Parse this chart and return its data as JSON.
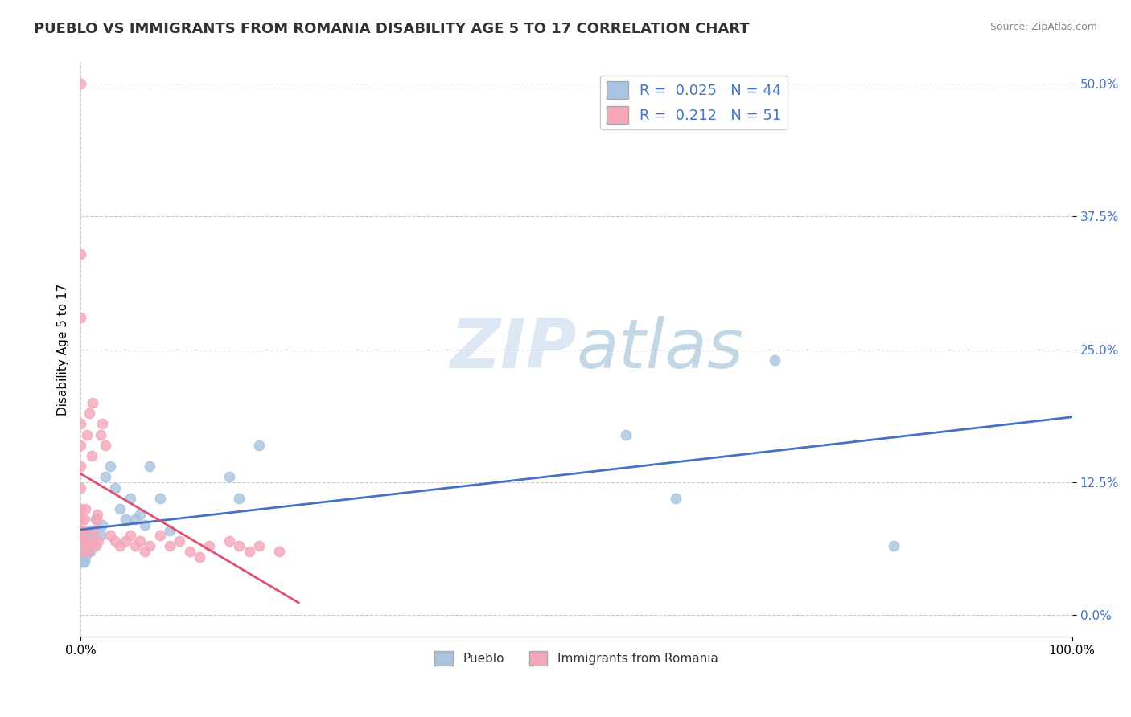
{
  "title": "PUEBLO VS IMMIGRANTS FROM ROMANIA DISABILITY AGE 5 TO 17 CORRELATION CHART",
  "source": "Source: ZipAtlas.com",
  "ylabel": "Disability Age 5 to 17",
  "xlim": [
    0.0,
    1.0
  ],
  "ylim": [
    -0.02,
    0.52
  ],
  "ytick_labels": [
    "0.0%",
    "12.5%",
    "25.0%",
    "37.5%",
    "50.0%"
  ],
  "ytick_values": [
    0.0,
    0.125,
    0.25,
    0.375,
    0.5
  ],
  "pueblo_R": 0.025,
  "pueblo_N": 44,
  "romania_R": 0.212,
  "romania_N": 51,
  "pueblo_color": "#a8c4e0",
  "pueblo_line_color": "#4472c4",
  "romania_color": "#f4a7b9",
  "romania_line_color": "#e05070",
  "legend_label_1": "Pueblo",
  "legend_label_2": "Immigrants from Romania",
  "watermark_zip": "ZIP",
  "watermark_atlas": "atlas",
  "pueblo_x": [
    0.0,
    0.0,
    0.0,
    0.0,
    0.0,
    0.002,
    0.002,
    0.003,
    0.003,
    0.004,
    0.005,
    0.005,
    0.006,
    0.006,
    0.007,
    0.008,
    0.009,
    0.01,
    0.01,
    0.011,
    0.012,
    0.013,
    0.015,
    0.02,
    0.022,
    0.025,
    0.03,
    0.035,
    0.04,
    0.045,
    0.05,
    0.055,
    0.06,
    0.065,
    0.07,
    0.08,
    0.09,
    0.15,
    0.16,
    0.18,
    0.55,
    0.6,
    0.7,
    0.82
  ],
  "pueblo_y": [
    0.05,
    0.06,
    0.07,
    0.075,
    0.08,
    0.05,
    0.06,
    0.06,
    0.07,
    0.05,
    0.055,
    0.065,
    0.06,
    0.07,
    0.065,
    0.07,
    0.075,
    0.06,
    0.08,
    0.07,
    0.065,
    0.08,
    0.09,
    0.075,
    0.085,
    0.13,
    0.14,
    0.12,
    0.1,
    0.09,
    0.11,
    0.09,
    0.095,
    0.085,
    0.14,
    0.11,
    0.08,
    0.13,
    0.11,
    0.16,
    0.17,
    0.11,
    0.24,
    0.065
  ],
  "romania_x": [
    0.0,
    0.0,
    0.0,
    0.0,
    0.0,
    0.0,
    0.0,
    0.0,
    0.0,
    0.0,
    0.0,
    0.0,
    0.002,
    0.003,
    0.004,
    0.005,
    0.006,
    0.007,
    0.008,
    0.009,
    0.01,
    0.011,
    0.012,
    0.013,
    0.015,
    0.016,
    0.017,
    0.018,
    0.02,
    0.022,
    0.025,
    0.03,
    0.035,
    0.04,
    0.045,
    0.05,
    0.055,
    0.06,
    0.065,
    0.07,
    0.08,
    0.09,
    0.1,
    0.11,
    0.12,
    0.13,
    0.15,
    0.16,
    0.17,
    0.18,
    0.2
  ],
  "romania_y": [
    0.5,
    0.28,
    0.34,
    0.06,
    0.07,
    0.08,
    0.09,
    0.1,
    0.12,
    0.14,
    0.16,
    0.18,
    0.07,
    0.08,
    0.09,
    0.1,
    0.17,
    0.06,
    0.065,
    0.19,
    0.07,
    0.15,
    0.2,
    0.08,
    0.065,
    0.09,
    0.095,
    0.07,
    0.17,
    0.18,
    0.16,
    0.075,
    0.07,
    0.065,
    0.07,
    0.075,
    0.065,
    0.07,
    0.06,
    0.065,
    0.075,
    0.065,
    0.07,
    0.06,
    0.055,
    0.065,
    0.07,
    0.065,
    0.06,
    0.065,
    0.06
  ]
}
